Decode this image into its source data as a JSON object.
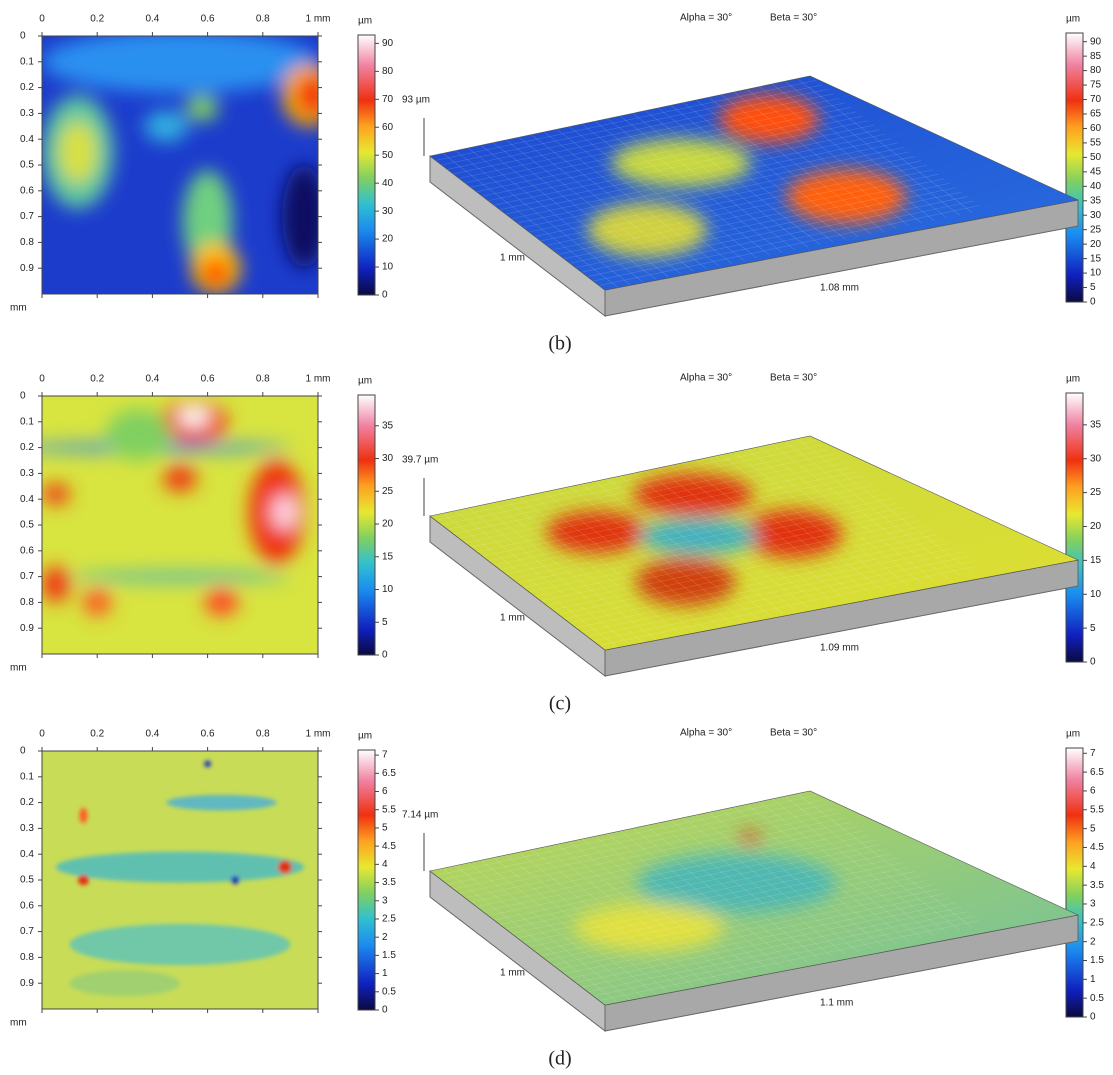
{
  "figure": {
    "map_x_ticks": [
      0,
      0.2,
      0.4,
      0.6,
      0.8,
      {
        "value": 1,
        "label": "1 mm"
      }
    ],
    "map_y_ticks": [
      0,
      0.1,
      0.2,
      0.3,
      0.4,
      0.5,
      0.6,
      0.7,
      0.8,
      0.9
    ],
    "map_unit": "mm",
    "colorbar_unit": "µm",
    "alpha": "Alpha = 30°",
    "beta": "Beta = 30°",
    "panels": [
      {
        "label": "(b)",
        "height": "93 µm",
        "width_label": "1 mm",
        "depth_label": "1.08 mm",
        "colorbar_max": 93,
        "left_ticks": [
          0,
          10,
          20,
          30,
          40,
          50,
          60,
          70,
          80,
          90
        ],
        "right_ticks": [
          0,
          5,
          10,
          15,
          20,
          25,
          30,
          35,
          40,
          45,
          50,
          55,
          60,
          65,
          70,
          75,
          80,
          85,
          90
        ]
      },
      {
        "label": "(c)",
        "height": "39.7 µm",
        "width_label": "1 mm",
        "depth_label": "1.09 mm",
        "colorbar_max": 39.7,
        "left_ticks": [
          0,
          5,
          10,
          15,
          20,
          25,
          30,
          35
        ],
        "right_ticks": [
          0,
          5,
          10,
          15,
          20,
          25,
          30,
          35
        ]
      },
      {
        "label": "(d)",
        "height": "7.14 µm",
        "width_label": "1 mm",
        "depth_label": "1.1 mm",
        "colorbar_max": 7.14,
        "left_ticks": [
          0,
          0.5,
          1,
          1.5,
          2,
          2.5,
          3,
          3.5,
          4,
          4.5,
          5,
          5.5,
          6,
          6.5,
          7
        ],
        "right_ticks": [
          0,
          0.5,
          1,
          1.5,
          2,
          2.5,
          3,
          3.5,
          4,
          4.5,
          5,
          5.5,
          6,
          6.5,
          7
        ]
      }
    ]
  }
}
